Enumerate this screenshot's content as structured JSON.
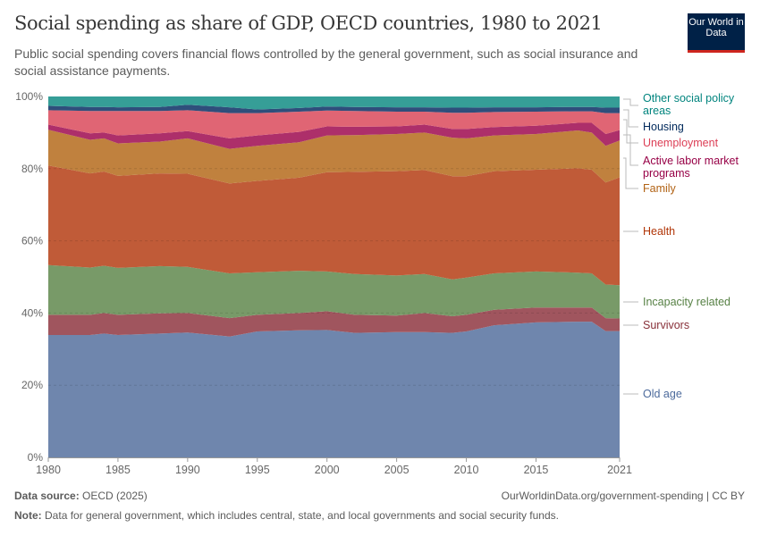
{
  "header": {
    "title": "Social spending as share of GDP, OECD countries, 1980 to 2021",
    "subtitle": "Public social spending covers financial flows controlled by the general government, such as social insurance and social assistance payments.",
    "logo_text": "Our World in Data"
  },
  "chart_data": {
    "type": "area",
    "stacked": true,
    "normalized": true,
    "x": [
      1980,
      1983,
      1984,
      1985,
      1988,
      1990,
      1993,
      1995,
      1998,
      2000,
      2002,
      2005,
      2007,
      2009,
      2010,
      2012,
      2015,
      2018,
      2019,
      2020,
      2021
    ],
    "ylim": [
      0,
      100
    ],
    "yticks": [
      "0%",
      "20%",
      "40%",
      "60%",
      "80%",
      "100%"
    ],
    "xticks": [
      "1980",
      "1985",
      "1990",
      "1995",
      "2000",
      "2005",
      "2010",
      "2015",
      "2021"
    ],
    "xtick_values": [
      1980,
      1985,
      1990,
      1995,
      2000,
      2005,
      2010,
      2015,
      2021
    ],
    "ytick_values": [
      0,
      20,
      40,
      60,
      80,
      100
    ],
    "grid": "horizontal dashed",
    "legend_placement": "right (inline labels)",
    "series": [
      {
        "name": "Old age",
        "color": "#6f86ad",
        "label_color": "#4c6a9c",
        "values": [
          33.9,
          33.9,
          34.3,
          33.9,
          34.3,
          34.6,
          33.5,
          34.9,
          35.2,
          35.3,
          34.5,
          34.7,
          34.7,
          34.5,
          34.9,
          36.6,
          37.4,
          37.6,
          37.6,
          35.0,
          35.0
        ]
      },
      {
        "name": "Survivors",
        "color": "#a0555e",
        "label_color": "#883039",
        "values": [
          5.6,
          5.6,
          5.7,
          5.6,
          5.6,
          5.4,
          5.1,
          4.6,
          4.8,
          5.2,
          5.0,
          4.6,
          5.3,
          4.6,
          4.6,
          4.3,
          4.1,
          3.9,
          3.9,
          3.6,
          3.5
        ]
      },
      {
        "name": "Incapacity related",
        "color": "#789a68",
        "label_color": "#578145",
        "values": [
          13.8,
          13.1,
          13.1,
          13.0,
          13.1,
          12.8,
          12.4,
          11.8,
          11.7,
          11.0,
          11.3,
          11.1,
          10.8,
          10.2,
          10.3,
          10.1,
          10.0,
          9.7,
          9.5,
          9.3,
          9.2
        ]
      },
      {
        "name": "Health",
        "color": "#c05b38",
        "label_color": "#b13507",
        "values": [
          27.6,
          26.1,
          26.1,
          25.5,
          25.7,
          25.8,
          24.9,
          25.3,
          25.8,
          27.5,
          28.3,
          28.9,
          28.8,
          28.6,
          28.1,
          28.3,
          28.2,
          28.9,
          28.7,
          28.3,
          29.9
        ]
      },
      {
        "name": "Family",
        "color": "#c0813e",
        "label_color": "#b16214",
        "values": [
          9.9,
          9.3,
          9.2,
          9.0,
          8.8,
          9.8,
          9.6,
          9.7,
          9.8,
          10.2,
          10.2,
          10.3,
          10.4,
          10.7,
          10.5,
          9.9,
          9.9,
          10.5,
          10.3,
          10.1,
          10.2
        ]
      },
      {
        "name": "Active labor market programs",
        "color": "#ad2f6a",
        "label_color": "#970046",
        "values": [
          1.4,
          1.8,
          1.6,
          2.2,
          2.3,
          2.0,
          2.9,
          2.9,
          2.9,
          2.5,
          2.3,
          2.1,
          2.2,
          2.4,
          2.6,
          2.3,
          2.3,
          2.1,
          2.7,
          3.3,
          2.9
        ]
      },
      {
        "name": "Unemployment",
        "color": "#e06574",
        "label_color": "#dc3e55",
        "values": [
          4.0,
          6.2,
          6.0,
          6.8,
          6.2,
          5.8,
          7.0,
          6.2,
          5.6,
          4.4,
          4.4,
          4.1,
          3.6,
          4.5,
          4.5,
          4.2,
          3.9,
          3.2,
          3.2,
          5.8,
          4.7
        ]
      },
      {
        "name": "Housing",
        "color": "#2f4e7b",
        "label_color": "#00295b",
        "values": [
          1.2,
          1.1,
          1.1,
          1.0,
          1.1,
          1.5,
          1.6,
          1.0,
          1.0,
          1.1,
          1.1,
          1.2,
          1.2,
          1.4,
          1.4,
          1.3,
          1.2,
          1.2,
          1.2,
          1.5,
          1.5
        ]
      },
      {
        "name": "Other social policy areas",
        "color": "#369e97",
        "label_color": "#00847e",
        "values": [
          2.6,
          2.9,
          2.9,
          3.0,
          2.9,
          2.3,
          3.0,
          3.6,
          3.2,
          2.8,
          2.9,
          3.0,
          3.0,
          3.1,
          3.1,
          3.0,
          3.0,
          2.9,
          2.9,
          3.1,
          3.1
        ]
      }
    ]
  },
  "legend": {
    "other_line1": "Other social policy",
    "other_line2": "areas",
    "housing": "Housing",
    "unemployment": "Unemployment",
    "almp_line1": "Active labor market",
    "almp_line2": "programs",
    "family": "Family",
    "health": "Health",
    "incapacity": "Incapacity related",
    "survivors": "Survivors",
    "old_age": "Old age"
  },
  "footer": {
    "source_label": "Data source:",
    "source_value": "OECD (2025)",
    "url": "OurWorldinData.org/government-spending | CC BY",
    "note_label": "Note:",
    "note_value": "Data for general government, which includes central, state, and local governments and social security funds."
  }
}
